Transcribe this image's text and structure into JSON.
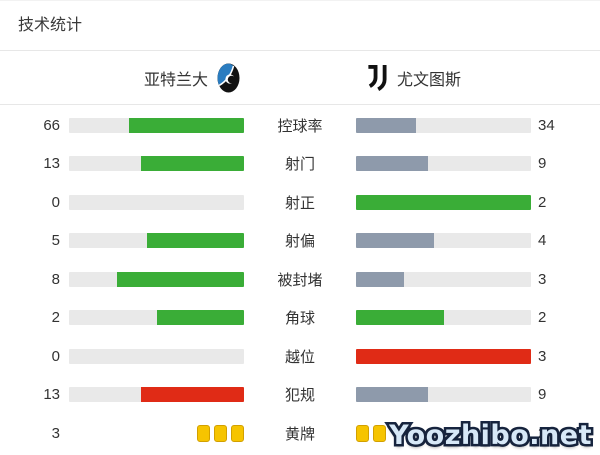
{
  "title": "技术统计",
  "teams": {
    "home": {
      "name": "亚特兰大"
    },
    "away": {
      "name": "尤文图斯"
    }
  },
  "watermark": "Yoozhibo.net",
  "colors": {
    "win": "#3aad37",
    "lose": "#8e9aab",
    "bad": "#e02b16",
    "track": "#e9e9e9",
    "card_fill": "#f6c400",
    "card_border": "#d2a000"
  },
  "rows": [
    {
      "type": "bar",
      "label": "控球率",
      "home": {
        "value": 66,
        "fill": 66.0,
        "color": "win"
      },
      "away": {
        "value": 34,
        "fill": 34.0,
        "color": "lose"
      }
    },
    {
      "type": "bar",
      "label": "射门",
      "home": {
        "value": 13,
        "fill": 59.1,
        "color": "win"
      },
      "away": {
        "value": 9,
        "fill": 40.9,
        "color": "lose"
      }
    },
    {
      "type": "bar",
      "label": "射正",
      "home": {
        "value": 0,
        "fill": 0,
        "color": "win"
      },
      "away": {
        "value": 2,
        "fill": 100,
        "color": "win"
      }
    },
    {
      "type": "bar",
      "label": "射偏",
      "home": {
        "value": 5,
        "fill": 55.6,
        "color": "win"
      },
      "away": {
        "value": 4,
        "fill": 44.4,
        "color": "lose"
      }
    },
    {
      "type": "bar",
      "label": "被封堵",
      "home": {
        "value": 8,
        "fill": 72.7,
        "color": "win"
      },
      "away": {
        "value": 3,
        "fill": 27.3,
        "color": "lose"
      }
    },
    {
      "type": "bar",
      "label": "角球",
      "home": {
        "value": 2,
        "fill": 50,
        "color": "win"
      },
      "away": {
        "value": 2,
        "fill": 50,
        "color": "win"
      }
    },
    {
      "type": "bar",
      "label": "越位",
      "home": {
        "value": 0,
        "fill": 0,
        "color": "bad"
      },
      "away": {
        "value": 3,
        "fill": 100,
        "color": "bad"
      }
    },
    {
      "type": "bar",
      "label": "犯规",
      "home": {
        "value": 13,
        "fill": 59.1,
        "color": "bad"
      },
      "away": {
        "value": 9,
        "fill": 40.9,
        "color": "lose"
      }
    },
    {
      "type": "cards",
      "label": "黄牌",
      "home": {
        "value": 3
      },
      "away": {
        "value": 2
      }
    }
  ],
  "chart_data": {
    "type": "bar",
    "orientation": "horizontal-paired",
    "title": "技术统计",
    "categories": [
      "控球率",
      "射门",
      "射正",
      "射偏",
      "被封堵",
      "角球",
      "越位",
      "犯规",
      "黄牌"
    ],
    "series": [
      {
        "name": "亚特兰大",
        "values": [
          66,
          13,
          0,
          5,
          8,
          2,
          0,
          13,
          3
        ]
      },
      {
        "name": "尤文图斯",
        "values": [
          34,
          9,
          2,
          4,
          3,
          2,
          3,
          9,
          2
        ]
      }
    ],
    "legend_position": "top",
    "grid": false,
    "value_labels": "outer-edges",
    "bar_fill_rule": "value / (home+away) per row; home bars grow right-to-left, away bars left-to-right",
    "color_rule": "higher or equal value = green; lower value = gray-blue; 越位/犯规 higher value = red; 黄牌 drawn as yellow card icons"
  }
}
